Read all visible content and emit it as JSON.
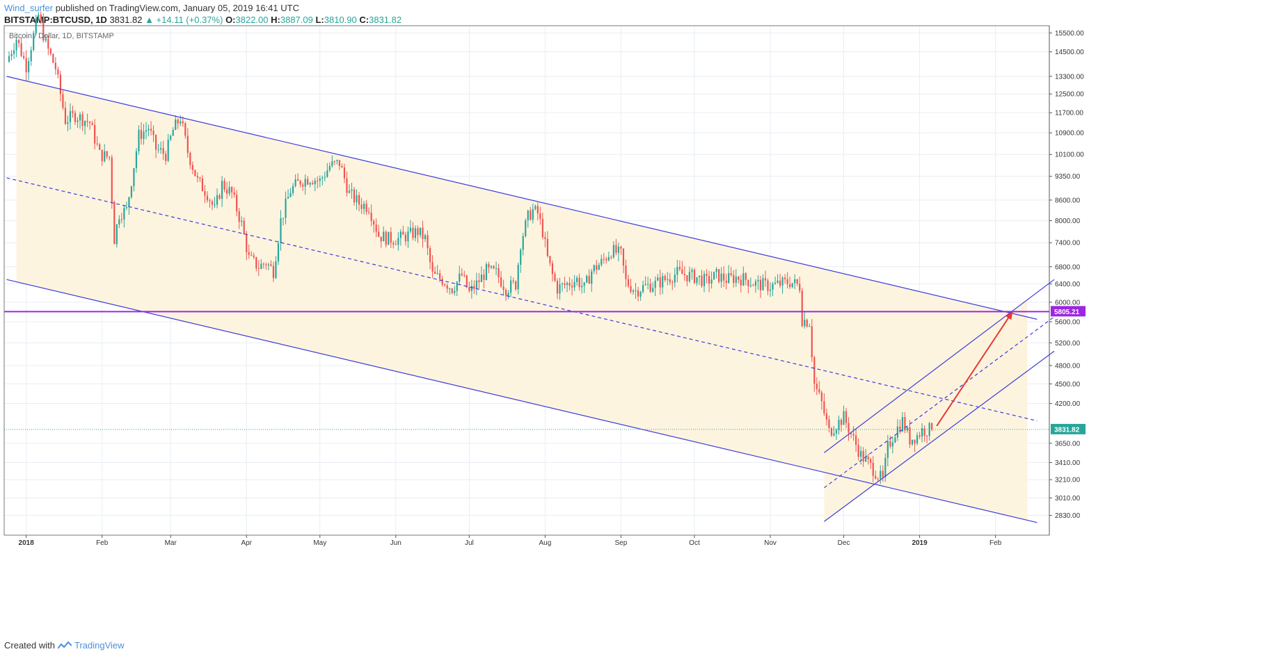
{
  "header": {
    "author": "Wind_surfer",
    "published_text": "published on TradingView.com, January 05, 2019 16:41 UTC",
    "symbol": "BITSTAMP:BTCUSD, 1D",
    "last_price": "3831.82",
    "change": "▲ +14.11 (+0.37%)",
    "o_label": "O:",
    "o_value": "3822.00",
    "h_label": "H:",
    "h_value": "3887.09",
    "l_label": "L:",
    "l_value": "3810.90",
    "c_label": "C:",
    "c_value": "3831.82"
  },
  "footer": {
    "created_with": "Created with",
    "brand": "TradingView"
  },
  "colors": {
    "up": "#26a69a",
    "down": "#ef5350",
    "channel": "#3b3bdb",
    "channel_fill": "#fdf3dc",
    "support": "#9c27e0",
    "arrow": "#e53935",
    "grid": "#e8eef3",
    "price_tag": "#26a69a"
  },
  "chart_data": {
    "type": "candlestick",
    "title": "Bitcoin / Dollar, 1D, BITSTAMP",
    "y_axis": {
      "scale": "log",
      "range": [
        2640,
        15900
      ],
      "ticks": [
        "15500.00",
        "14500.00",
        "13300.00",
        "12500.00",
        "11700.00",
        "10900.00",
        "10100.00",
        "9350.00",
        "8600.00",
        "8000.00",
        "7400.00",
        "6800.00",
        "6400.00",
        "6000.00",
        "5600.00",
        "5200.00",
        "4800.00",
        "4500.00",
        "4200.00",
        "3650.00",
        "3410.00",
        "3210.00",
        "3010.00",
        "2830.00"
      ]
    },
    "x_axis": {
      "ticks": [
        {
          "label": "2018",
          "day": 0
        },
        {
          "label": "Feb",
          "day": 31
        },
        {
          "label": "Mar",
          "day": 59
        },
        {
          "label": "Apr",
          "day": 90
        },
        {
          "label": "May",
          "day": 120
        },
        {
          "label": "Jun",
          "day": 151
        },
        {
          "label": "Jul",
          "day": 181
        },
        {
          "label": "Aug",
          "day": 212
        },
        {
          "label": "Sep",
          "day": 243
        },
        {
          "label": "Oct",
          "day": 273
        },
        {
          "label": "Nov",
          "day": 304
        },
        {
          "label": "Dec",
          "day": 334
        },
        {
          "label": "2019",
          "day": 365
        },
        {
          "label": "Feb",
          "day": 396
        }
      ],
      "day_range": [
        -9,
        418
      ]
    },
    "close_anchors": [
      [
        -8,
        14000
      ],
      [
        -4,
        15200
      ],
      [
        0,
        13800
      ],
      [
        5,
        16500
      ],
      [
        8,
        14900
      ],
      [
        12,
        13700
      ],
      [
        16,
        11400
      ],
      [
        20,
        11600
      ],
      [
        26,
        11300
      ],
      [
        30,
        10100
      ],
      [
        34,
        10000
      ],
      [
        36,
        7500
      ],
      [
        38,
        8200
      ],
      [
        41,
        8300
      ],
      [
        46,
        10800
      ],
      [
        50,
        11100
      ],
      [
        53,
        10300
      ],
      [
        57,
        10100
      ],
      [
        60,
        11000
      ],
      [
        63,
        11500
      ],
      [
        66,
        10200
      ],
      [
        70,
        9200
      ],
      [
        74,
        8800
      ],
      [
        77,
        8300
      ],
      [
        80,
        9100
      ],
      [
        84,
        8800
      ],
      [
        88,
        7900
      ],
      [
        91,
        7000
      ],
      [
        95,
        6800
      ],
      [
        98,
        6900
      ],
      [
        101,
        6700
      ],
      [
        104,
        8000
      ],
      [
        108,
        8900
      ],
      [
        112,
        9200
      ],
      [
        116,
        9300
      ],
      [
        120,
        9200
      ],
      [
        124,
        9700
      ],
      [
        128,
        9800
      ],
      [
        132,
        8800
      ],
      [
        136,
        8500
      ],
      [
        140,
        8400
      ],
      [
        144,
        7600
      ],
      [
        148,
        7500
      ],
      [
        152,
        7500
      ],
      [
        156,
        7600
      ],
      [
        160,
        7700
      ],
      [
        163,
        7500
      ],
      [
        166,
        6600
      ],
      [
        170,
        6500
      ],
      [
        174,
        6300
      ],
      [
        178,
        6600
      ],
      [
        181,
        6200
      ],
      [
        184,
        6400
      ],
      [
        188,
        6700
      ],
      [
        192,
        6650
      ],
      [
        196,
        6300
      ],
      [
        200,
        6400
      ],
      [
        202,
        7400
      ],
      [
        205,
        8100
      ],
      [
        207,
        8300
      ],
      [
        209,
        8200
      ],
      [
        211,
        7700
      ],
      [
        213,
        7000
      ],
      [
        215,
        6600
      ],
      [
        217,
        6300
      ],
      [
        221,
        6400
      ],
      [
        225,
        6500
      ],
      [
        228,
        6300
      ],
      [
        231,
        6700
      ],
      [
        235,
        6900
      ],
      [
        239,
        7200
      ],
      [
        243,
        7100
      ],
      [
        245,
        6450
      ],
      [
        249,
        6250
      ],
      [
        253,
        6350
      ],
      [
        257,
        6400
      ],
      [
        261,
        6500
      ],
      [
        266,
        6650
      ],
      [
        270,
        6600
      ],
      [
        274,
        6550
      ],
      [
        278,
        6450
      ],
      [
        282,
        6600
      ],
      [
        286,
        6500
      ],
      [
        290,
        6550
      ],
      [
        294,
        6500
      ],
      [
        298,
        6400
      ],
      [
        304,
        6350
      ],
      [
        308,
        6400
      ],
      [
        312,
        6450
      ],
      [
        316,
        6350
      ],
      [
        317,
        5650
      ],
      [
        320,
        5600
      ],
      [
        322,
        4500
      ],
      [
        325,
        4200
      ],
      [
        328,
        3800
      ],
      [
        331,
        3900
      ],
      [
        334,
        4000
      ],
      [
        338,
        3700
      ],
      [
        341,
        3500
      ],
      [
        344,
        3400
      ],
      [
        347,
        3300
      ],
      [
        350,
        3200
      ],
      [
        352,
        3600
      ],
      [
        355,
        3800
      ],
      [
        358,
        3950
      ],
      [
        361,
        3700
      ],
      [
        364,
        3750
      ],
      [
        366,
        3820
      ],
      [
        370,
        3832
      ]
    ],
    "series": [
      {
        "name": "Price channel upper",
        "style": "solid",
        "from": {
          "day": -8,
          "price": 13300
        },
        "to": {
          "day": 413,
          "price": 5650
        }
      },
      {
        "name": "Price channel median",
        "style": "dashed",
        "from": {
          "day": -8,
          "price": 9300
        },
        "to": {
          "day": 413,
          "price": 3950
        }
      },
      {
        "name": "Price channel lower",
        "style": "solid",
        "from": {
          "day": -8,
          "price": 6500
        },
        "to": {
          "day": 413,
          "price": 2760
        }
      },
      {
        "name": "Rising channel upper",
        "style": "solid",
        "from": {
          "day": 326,
          "price": 3530
        },
        "to": {
          "day": 420,
          "price": 6500
        }
      },
      {
        "name": "Rising channel median",
        "style": "dashed",
        "from": {
          "day": 326,
          "price": 3120
        },
        "to": {
          "day": 420,
          "price": 5700
        }
      },
      {
        "name": "Rising channel lower",
        "style": "solid",
        "from": {
          "day": 326,
          "price": 2770
        },
        "to": {
          "day": 420,
          "price": 5050
        }
      },
      {
        "name": "Projection arrow",
        "style": "arrow",
        "from": {
          "day": 372,
          "price": 3880
        },
        "to": {
          "day": 403,
          "price": 5805.21
        }
      },
      {
        "name": "Support",
        "style": "horizontal",
        "value": 5805.21
      }
    ],
    "labels": {
      "support_price": "5805.21",
      "last_price": "3831.82"
    }
  }
}
